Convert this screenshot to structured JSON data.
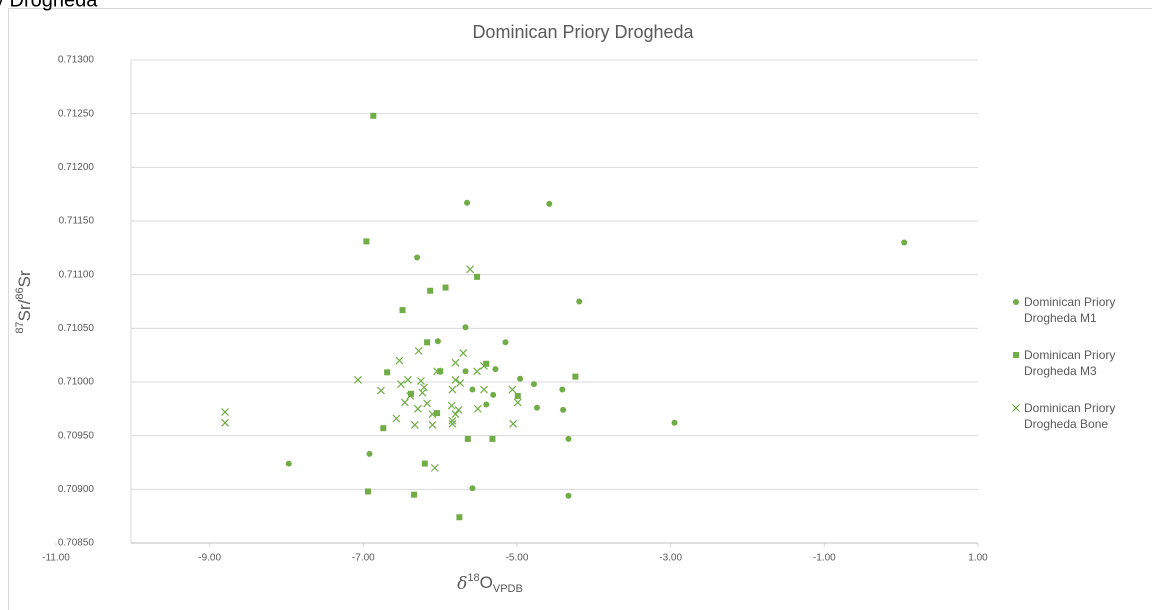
{
  "page_fragment": "y Drogheda",
  "chart_data": {
    "type": "scatter",
    "title": "Dominican Priory Drogheda",
    "xlabel": [
      "δ",
      "18",
      "O",
      "VPDB"
    ],
    "ylabel": [
      "87",
      "Sr/",
      "86",
      "Sr"
    ],
    "xlim": [
      -11,
      1
    ],
    "ylim": [
      0.7085,
      0.713
    ],
    "xticks": [
      {
        "value": -11,
        "label": "-11.00"
      },
      {
        "value": -9,
        "label": "-9.00"
      },
      {
        "value": -7,
        "label": "-7.00"
      },
      {
        "value": -5,
        "label": "-5.00"
      },
      {
        "value": -3,
        "label": "-3.00"
      },
      {
        "value": -1,
        "label": "-1.00"
      },
      {
        "value": 1,
        "label": "1.00"
      }
    ],
    "yticks": [
      {
        "value": 0.7085,
        "label": "0.70850"
      },
      {
        "value": 0.709,
        "label": "0.70900"
      },
      {
        "value": 0.7095,
        "label": "0.70950"
      },
      {
        "value": 0.71,
        "label": "0.71000"
      },
      {
        "value": 0.7105,
        "label": "0.71050"
      },
      {
        "value": 0.711,
        "label": "0.71100"
      },
      {
        "value": 0.7115,
        "label": "0.71150"
      },
      {
        "value": 0.712,
        "label": "0.71200"
      },
      {
        "value": 0.7125,
        "label": "0.71250"
      },
      {
        "value": 0.713,
        "label": "0.71300"
      }
    ],
    "grid": true,
    "legend": "right",
    "series": [
      {
        "name": "Dominican Priory Drogheda M1",
        "color": "#70ad47",
        "marker": "circle",
        "x": [
          0.04,
          -4.58,
          -5.65,
          -6.3,
          -4.19,
          -5.67,
          -6.03,
          -5.15,
          -5.67,
          -5.28,
          -4.96,
          -4.78,
          -4.41,
          -5.58,
          -5.31,
          -5.4,
          -4.74,
          -4.4,
          -2.95,
          -4.33,
          -7.97,
          -6.92,
          -5.58,
          -4.33
        ],
        "values": [
          0.7113,
          0.71166,
          0.71167,
          0.71116,
          0.71075,
          0.71051,
          0.71038,
          0.71037,
          0.7101,
          0.71012,
          0.71003,
          0.70998,
          0.70993,
          0.70993,
          0.70988,
          0.70979,
          0.70976,
          0.70974,
          0.70962,
          0.70947,
          0.70924,
          0.70933,
          0.70901,
          0.70894
        ]
      },
      {
        "name": "Dominican Priory Drogheda M3",
        "color": "#70ad47",
        "marker": "square",
        "x": [
          -6.87,
          -6.96,
          -5.52,
          -5.93,
          -6.13,
          -6.49,
          -6.17,
          -5.4,
          -6.69,
          -6.0,
          -4.24,
          -4.99,
          -6.38,
          -6.04,
          -6.74,
          -5.64,
          -5.32,
          -6.2,
          -6.94,
          -6.34,
          -5.75
        ],
        "values": [
          0.71248,
          0.71131,
          0.71098,
          0.71088,
          0.71085,
          0.71067,
          0.71037,
          0.71017,
          0.71009,
          0.7101,
          0.71005,
          0.70987,
          0.70989,
          0.70971,
          0.70957,
          0.70947,
          0.70947,
          0.70924,
          0.70898,
          0.70895,
          0.70874
        ]
      },
      {
        "name": "Dominican Priory Drogheda Bone",
        "color": "#70ad47",
        "marker": "x",
        "x": [
          -5.61,
          -8.8,
          -8.8,
          -7.07,
          -6.77,
          -6.53,
          -6.28,
          -5.7,
          -5.8,
          -5.43,
          -5.52,
          -6.04,
          -6.42,
          -6.25,
          -6.21,
          -6.51,
          -5.8,
          -5.74,
          -5.06,
          -5.43,
          -5.84,
          -6.23,
          -6.39,
          -4.99,
          -6.17,
          -6.46,
          -5.85,
          -5.76,
          -6.29,
          -6.1,
          -5.51,
          -6.57,
          -5.8,
          -5.84,
          -6.33,
          -6.1,
          -5.84,
          -5.05,
          -6.07
        ],
        "values": [
          0.71105,
          0.70972,
          0.70962,
          0.71002,
          0.70992,
          0.7102,
          0.71029,
          0.71027,
          0.71018,
          0.71015,
          0.7101,
          0.7101,
          0.71002,
          0.71001,
          0.70995,
          0.70998,
          0.71002,
          0.70999,
          0.70993,
          0.70993,
          0.70993,
          0.7099,
          0.70987,
          0.70981,
          0.7098,
          0.70981,
          0.70978,
          0.70974,
          0.70975,
          0.7097,
          0.70975,
          0.70966,
          0.7097,
          0.70964,
          0.7096,
          0.7096,
          0.70961,
          0.70961,
          0.7092
        ]
      }
    ]
  }
}
